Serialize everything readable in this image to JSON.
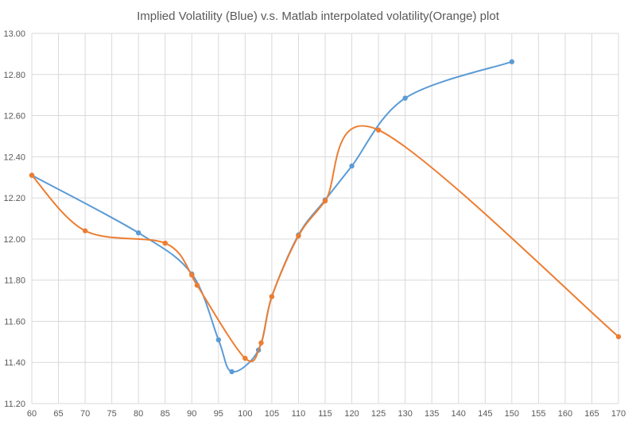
{
  "chart_data": {
    "type": "scatter",
    "title": "Implied Volatility (Blue) v.s. Matlab interpolated volatility(Orange) plot",
    "xlabel": "",
    "ylabel": "",
    "xlim": [
      60,
      170
    ],
    "ylim": [
      11.2,
      13.0
    ],
    "x_ticks": [
      "60",
      "65",
      "70",
      "75",
      "80",
      "85",
      "90",
      "95",
      "100",
      "105",
      "110",
      "115",
      "120",
      "125",
      "130",
      "135",
      "140",
      "145",
      "150",
      "155",
      "160",
      "165",
      "170"
    ],
    "y_ticks": [
      "11.20",
      "11.40",
      "11.60",
      "11.80",
      "12.00",
      "12.20",
      "12.40",
      "12.60",
      "12.80",
      "13.00"
    ],
    "grid": true,
    "smooth_lines": true,
    "series": [
      {
        "color": "#5B9BD5",
        "points": [
          [
            60,
            12.31
          ],
          [
            80,
            12.03
          ],
          [
            90,
            11.83
          ],
          [
            95,
            11.51
          ],
          [
            97.5,
            11.355
          ],
          [
            102.5,
            11.46
          ],
          [
            105,
            11.72
          ],
          [
            110,
            12.02
          ],
          [
            115,
            12.19
          ],
          [
            120,
            12.355
          ],
          [
            130,
            12.685
          ],
          [
            150,
            12.862
          ]
        ]
      },
      {
        "color": "#ED7D31",
        "points": [
          [
            60,
            12.31
          ],
          [
            70,
            12.04
          ],
          [
            85,
            11.98
          ],
          [
            90,
            11.825
          ],
          [
            91,
            11.775
          ],
          [
            100,
            11.42
          ],
          [
            103,
            11.495
          ],
          [
            105,
            11.72
          ],
          [
            110,
            12.015
          ],
          [
            115,
            12.185
          ],
          [
            125,
            12.53
          ],
          [
            170,
            11.525
          ]
        ]
      }
    ]
  }
}
